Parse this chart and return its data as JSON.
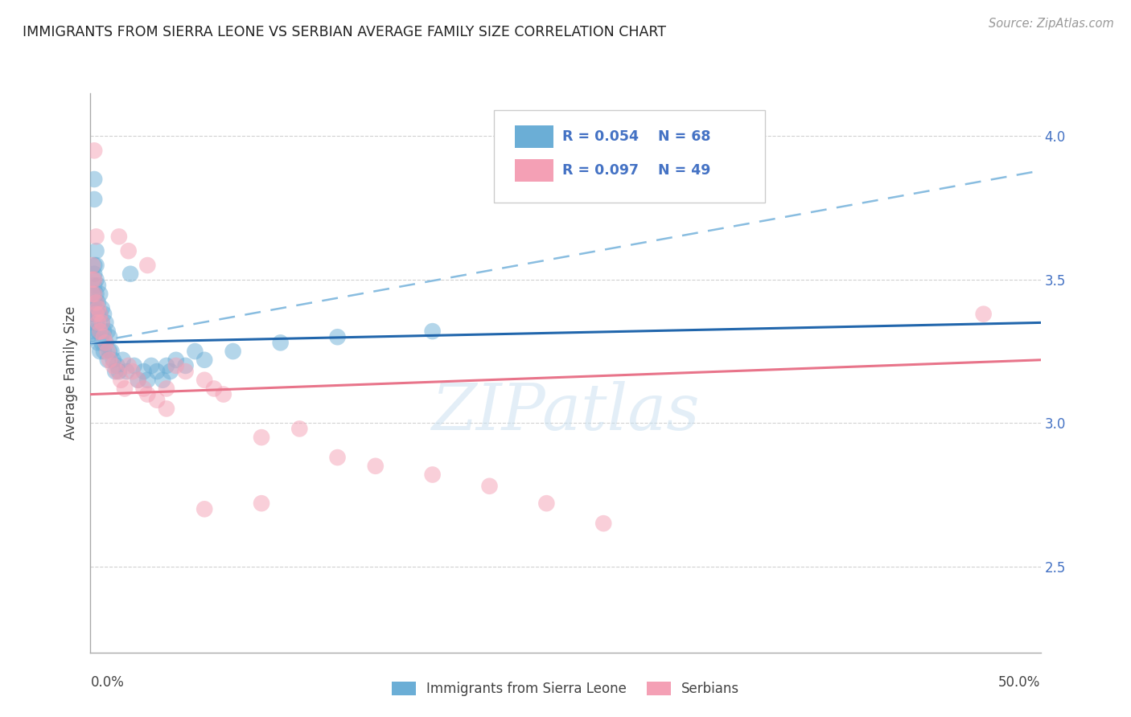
{
  "title": "IMMIGRANTS FROM SIERRA LEONE VS SERBIAN AVERAGE FAMILY SIZE CORRELATION CHART",
  "source": "Source: ZipAtlas.com",
  "ylabel": "Average Family Size",
  "yticks": [
    2.5,
    3.0,
    3.5,
    4.0
  ],
  "xlim": [
    0.0,
    0.5
  ],
  "ylim": [
    2.2,
    4.15
  ],
  "legend_blue_r": "R = 0.054",
  "legend_blue_n": "N = 68",
  "legend_pink_r": "R = 0.097",
  "legend_pink_n": "N = 49",
  "legend_label_blue": "Immigrants from Sierra Leone",
  "legend_label_pink": "Serbians",
  "blue_color": "#6baed6",
  "pink_color": "#f4a0b5",
  "blue_line_color": "#2166ac",
  "pink_line_color": "#e8748a",
  "dashed_line_color": "#89bde0",
  "watermark": "ZIPatlas",
  "blue_scatter_x": [
    0.001,
    0.001,
    0.001,
    0.001,
    0.001,
    0.001,
    0.002,
    0.002,
    0.002,
    0.002,
    0.002,
    0.002,
    0.002,
    0.002,
    0.002,
    0.003,
    0.003,
    0.003,
    0.003,
    0.003,
    0.003,
    0.003,
    0.004,
    0.004,
    0.004,
    0.004,
    0.004,
    0.005,
    0.005,
    0.005,
    0.005,
    0.006,
    0.006,
    0.006,
    0.007,
    0.007,
    0.007,
    0.008,
    0.008,
    0.009,
    0.009,
    0.01,
    0.01,
    0.011,
    0.012,
    0.013,
    0.014,
    0.015,
    0.017,
    0.019,
    0.021,
    0.023,
    0.025,
    0.028,
    0.03,
    0.032,
    0.035,
    0.038,
    0.04,
    0.042,
    0.045,
    0.05,
    0.055,
    0.06,
    0.075,
    0.1,
    0.13,
    0.18
  ],
  "blue_scatter_y": [
    3.45,
    3.4,
    3.38,
    3.35,
    3.32,
    3.3,
    3.85,
    3.78,
    3.55,
    3.52,
    3.48,
    3.45,
    3.42,
    3.4,
    3.38,
    3.6,
    3.55,
    3.5,
    3.45,
    3.42,
    3.38,
    3.35,
    3.48,
    3.42,
    3.38,
    3.32,
    3.28,
    3.45,
    3.38,
    3.32,
    3.25,
    3.4,
    3.35,
    3.28,
    3.38,
    3.32,
    3.25,
    3.35,
    3.28,
    3.32,
    3.22,
    3.3,
    3.25,
    3.25,
    3.22,
    3.18,
    3.2,
    3.18,
    3.22,
    3.18,
    3.52,
    3.2,
    3.15,
    3.18,
    3.15,
    3.2,
    3.18,
    3.15,
    3.2,
    3.18,
    3.22,
    3.2,
    3.25,
    3.22,
    3.25,
    3.28,
    3.3,
    3.32
  ],
  "pink_scatter_x": [
    0.001,
    0.001,
    0.001,
    0.002,
    0.002,
    0.002,
    0.003,
    0.003,
    0.003,
    0.004,
    0.004,
    0.005,
    0.005,
    0.006,
    0.007,
    0.008,
    0.009,
    0.01,
    0.012,
    0.014,
    0.016,
    0.018,
    0.02,
    0.022,
    0.025,
    0.028,
    0.03,
    0.035,
    0.04,
    0.045,
    0.05,
    0.06,
    0.065,
    0.07,
    0.09,
    0.11,
    0.13,
    0.15,
    0.18,
    0.21,
    0.24,
    0.27,
    0.015,
    0.02,
    0.03,
    0.04,
    0.06,
    0.09,
    0.47
  ],
  "pink_scatter_y": [
    3.55,
    3.5,
    3.45,
    3.95,
    3.5,
    3.45,
    3.65,
    3.42,
    3.38,
    3.4,
    3.35,
    3.38,
    3.32,
    3.35,
    3.3,
    3.28,
    3.25,
    3.22,
    3.2,
    3.18,
    3.15,
    3.12,
    3.2,
    3.18,
    3.15,
    3.12,
    3.1,
    3.08,
    3.05,
    3.2,
    3.18,
    3.15,
    3.12,
    3.1,
    2.95,
    2.98,
    2.88,
    2.85,
    2.82,
    2.78,
    2.72,
    2.65,
    3.65,
    3.6,
    3.55,
    3.12,
    2.7,
    2.72,
    3.38
  ],
  "blue_trendline": [
    3.28,
    3.35
  ],
  "pink_trendline": [
    3.1,
    3.22
  ],
  "dashed_trendline": [
    3.28,
    3.88
  ]
}
